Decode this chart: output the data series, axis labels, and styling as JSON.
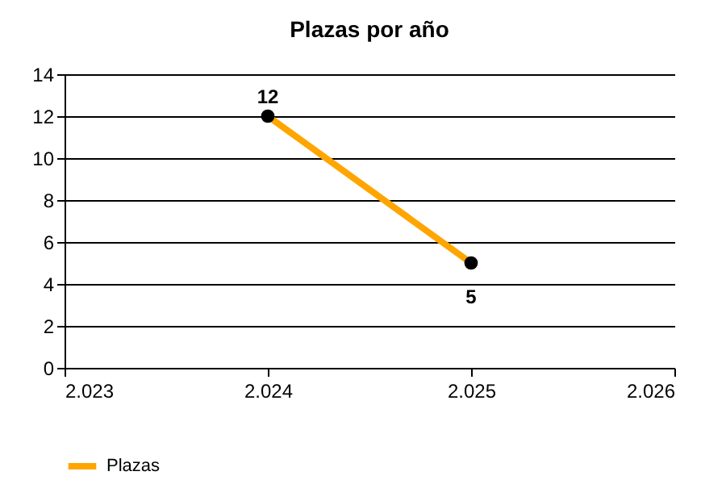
{
  "chart_data": {
    "type": "line",
    "title": "Plazas por año",
    "x": [
      2024,
      2025
    ],
    "series": [
      {
        "name": "Plazas",
        "color": "#ffa500",
        "values": [
          12,
          5
        ]
      }
    ],
    "xlim": [
      2023,
      2026
    ],
    "xticks": [
      {
        "value": 2023,
        "label": "2.023"
      },
      {
        "value": 2024,
        "label": "2.024"
      },
      {
        "value": 2025,
        "label": "2.025"
      },
      {
        "value": 2026,
        "label": "2.026"
      }
    ],
    "ylim": [
      0,
      14
    ],
    "yticks": [
      0,
      2,
      4,
      6,
      8,
      10,
      12,
      14
    ],
    "grid": "y",
    "legend": "bottom left",
    "marker": "circle",
    "data_labels": true
  }
}
